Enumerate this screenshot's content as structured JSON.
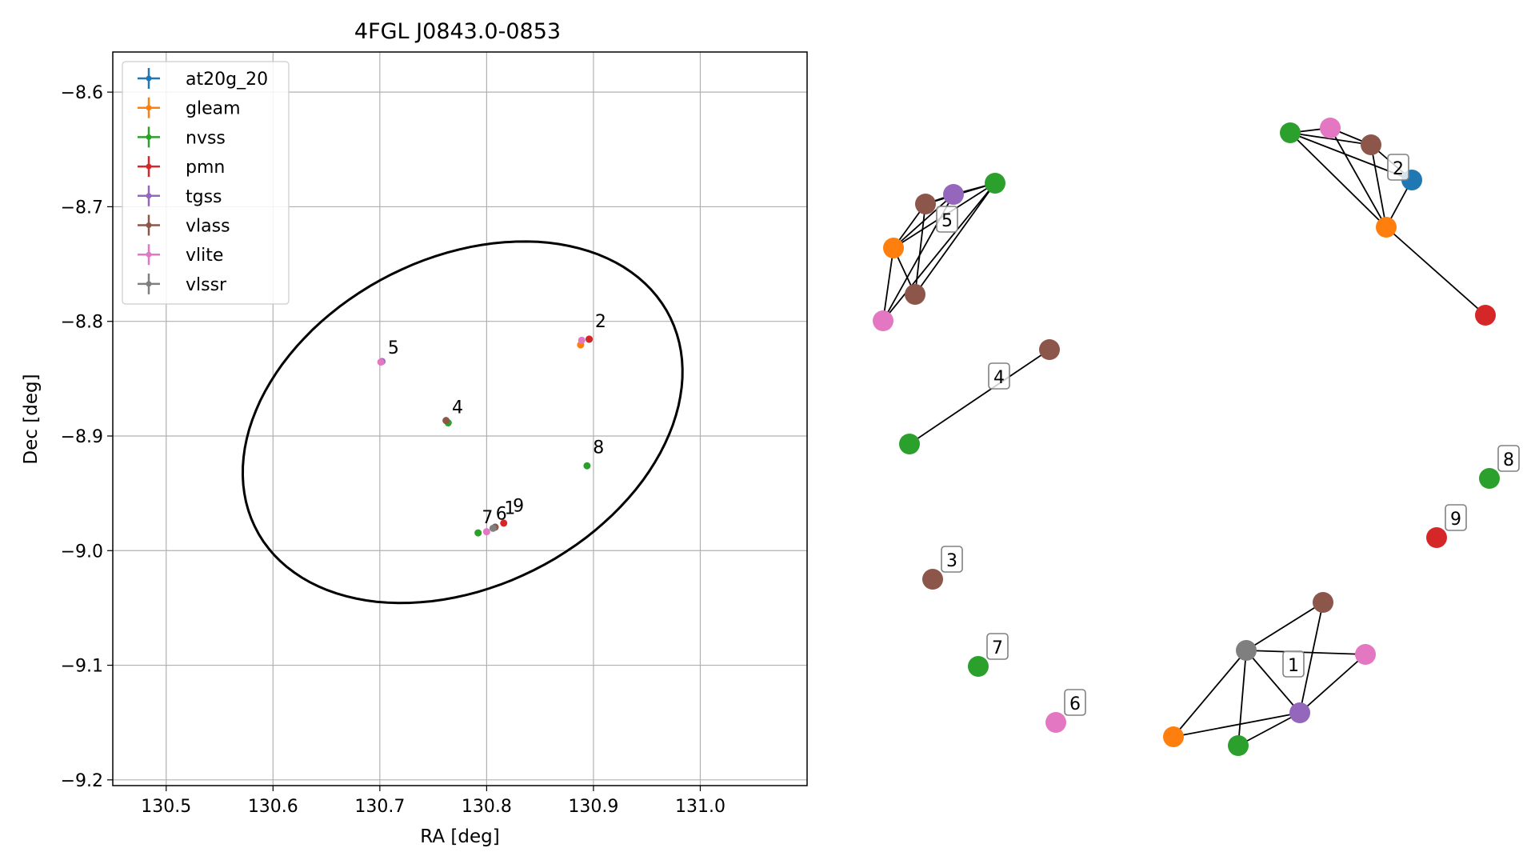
{
  "chart_data": [
    {
      "type": "scatter",
      "title": "4FGL J0843.0-0853",
      "xlabel": "RA [deg]",
      "ylabel": "Dec [deg]",
      "xlim": [
        130.45,
        131.1
      ],
      "ylim": [
        -9.205,
        -8.565
      ],
      "xticks": [
        130.5,
        130.6,
        130.7,
        130.8,
        130.9,
        131.0
      ],
      "xtick_labels": [
        "130.5",
        "130.6",
        "130.7",
        "130.8",
        "130.9",
        "131.0"
      ],
      "yticks": [
        -8.6,
        -8.7,
        -8.8,
        -8.9,
        -9.0,
        -9.1,
        -9.2
      ],
      "ytick_labels": [
        "−8.6",
        "−8.7",
        "−8.8",
        "−8.9",
        "−9.0",
        "−9.1",
        "−9.2"
      ],
      "grid": true,
      "legend_position": "upper-left",
      "series": [
        {
          "name": "at20g_20",
          "color": "#1f77b4",
          "points": [
            [
              130.896,
              -8.8156
            ]
          ]
        },
        {
          "name": "gleam",
          "color": "#ff7f0e",
          "points": [
            [
              130.888,
              -8.8205
            ]
          ]
        },
        {
          "name": "nvss",
          "color": "#2ca02c",
          "points": [
            [
              130.764,
              -8.8885
            ],
            [
              130.894,
              -8.926
            ],
            [
              130.792,
              -8.9845
            ]
          ]
        },
        {
          "name": "pmn",
          "color": "#d62728",
          "points": [
            [
              130.896,
              -8.8155
            ],
            [
              130.816,
              -8.976
            ]
          ]
        },
        {
          "name": "tgss",
          "color": "#9467bd",
          "points": [
            [
              130.702,
              -8.835
            ]
          ]
        },
        {
          "name": "vlass",
          "color": "#8c564b",
          "points": [
            [
              130.762,
              -8.8865
            ],
            [
              130.808,
              -8.9795
            ]
          ]
        },
        {
          "name": "vlite",
          "color": "#e377c2",
          "points": [
            [
              130.701,
              -8.8355
            ],
            [
              130.889,
              -8.8165
            ],
            [
              130.8,
              -8.9835
            ]
          ]
        },
        {
          "name": "vlssr",
          "color": "#7f7f7f",
          "points": [
            [
              130.806,
              -8.9805
            ]
          ]
        }
      ],
      "ellipse": {
        "center": [
          130.7775,
          -8.888
        ],
        "semi_major": 0.215,
        "semi_minor": 0.145,
        "angle_deg": 23
      },
      "point_labels": [
        {
          "text": "5",
          "x": 130.703,
          "y": -8.828
        },
        {
          "text": "2",
          "x": 130.897,
          "y": -8.805
        },
        {
          "text": "4",
          "x": 130.763,
          "y": -8.88
        },
        {
          "text": "8",
          "x": 130.895,
          "y": -8.915
        },
        {
          "text": "7",
          "x": 130.791,
          "y": -8.976
        },
        {
          "text": "6",
          "x": 130.804,
          "y": -8.973
        },
        {
          "text": "1",
          "x": 130.812,
          "y": -8.968
        },
        {
          "text": "9",
          "x": 130.82,
          "y": -8.966
        }
      ]
    },
    {
      "type": "network",
      "groups": [
        {
          "label": "5",
          "nodes": [
            "nvss",
            "tgss",
            "vlass",
            "gleam",
            "vlass",
            "vlite"
          ]
        },
        {
          "label": "2",
          "nodes": [
            "nvss",
            "vlite",
            "vlass",
            "at20g_20",
            "gleam",
            "pmn"
          ]
        },
        {
          "label": "4",
          "nodes": [
            "vlass",
            "nvss"
          ]
        },
        {
          "label": "8",
          "nodes": [
            "nvss"
          ]
        },
        {
          "label": "9",
          "nodes": [
            "pmn"
          ]
        },
        {
          "label": "3",
          "nodes": [
            "vlass"
          ]
        },
        {
          "label": "7",
          "nodes": [
            "nvss"
          ]
        },
        {
          "label": "6",
          "nodes": [
            "vlite"
          ]
        },
        {
          "label": "1",
          "nodes": [
            "vlass",
            "vlssr",
            "vlite",
            "tgss",
            "gleam",
            "nvss"
          ]
        }
      ]
    }
  ]
}
